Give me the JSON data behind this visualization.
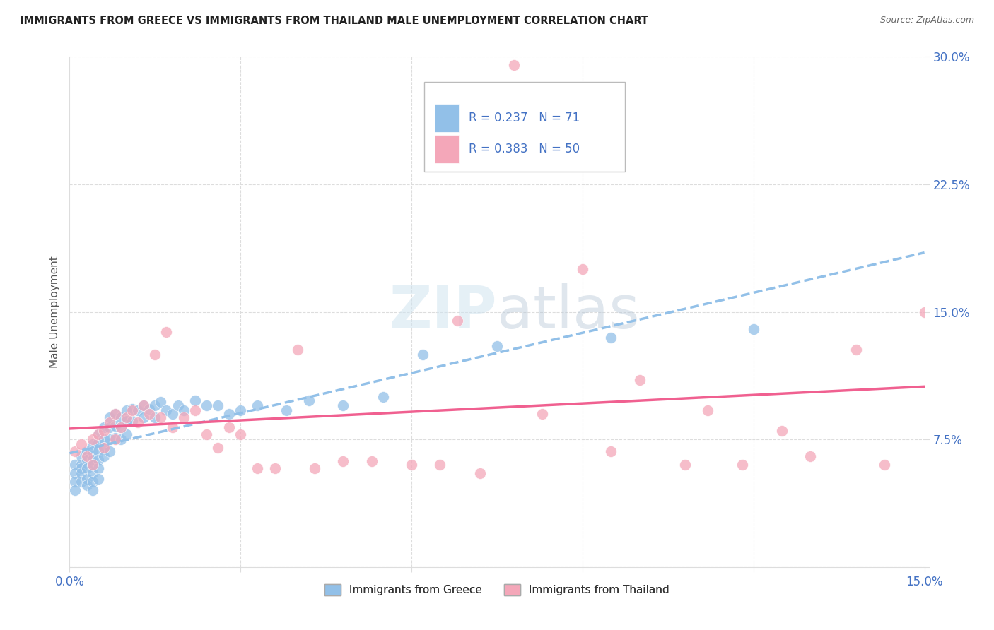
{
  "title": "IMMIGRANTS FROM GREECE VS IMMIGRANTS FROM THAILAND MALE UNEMPLOYMENT CORRELATION CHART",
  "source": "Source: ZipAtlas.com",
  "ylabel": "Male Unemployment",
  "xlim": [
    0.0,
    0.15
  ],
  "ylim": [
    0.0,
    0.3
  ],
  "greece_color": "#92c0e8",
  "thailand_color": "#f4a7b9",
  "greece_line_color": "#92c0e8",
  "thailand_line_color": "#f06090",
  "greece_R": 0.237,
  "greece_N": 71,
  "thailand_R": 0.383,
  "thailand_N": 50,
  "watermark_color": "#d0e4f0",
  "legend_color": "#4472c4",
  "grid_color": "#dddddd",
  "tick_color": "#4472c4",
  "greece_x": [
    0.001,
    0.001,
    0.001,
    0.001,
    0.002,
    0.002,
    0.002,
    0.002,
    0.002,
    0.003,
    0.003,
    0.003,
    0.003,
    0.003,
    0.004,
    0.004,
    0.004,
    0.004,
    0.004,
    0.004,
    0.004,
    0.005,
    0.005,
    0.005,
    0.005,
    0.005,
    0.005,
    0.006,
    0.006,
    0.006,
    0.006,
    0.007,
    0.007,
    0.007,
    0.007,
    0.008,
    0.008,
    0.008,
    0.009,
    0.009,
    0.009,
    0.01,
    0.01,
    0.01,
    0.011,
    0.011,
    0.012,
    0.013,
    0.013,
    0.014,
    0.015,
    0.015,
    0.016,
    0.017,
    0.018,
    0.019,
    0.02,
    0.022,
    0.024,
    0.026,
    0.028,
    0.03,
    0.033,
    0.038,
    0.042,
    0.048,
    0.055,
    0.062,
    0.075,
    0.095,
    0.12
  ],
  "greece_y": [
    0.06,
    0.055,
    0.05,
    0.045,
    0.065,
    0.06,
    0.058,
    0.055,
    0.05,
    0.068,
    0.063,
    0.058,
    0.052,
    0.048,
    0.072,
    0.068,
    0.063,
    0.06,
    0.055,
    0.05,
    0.045,
    0.078,
    0.073,
    0.068,
    0.063,
    0.058,
    0.052,
    0.082,
    0.075,
    0.07,
    0.065,
    0.088,
    0.082,
    0.075,
    0.068,
    0.09,
    0.083,
    0.076,
    0.088,
    0.082,
    0.075,
    0.092,
    0.086,
    0.078,
    0.093,
    0.086,
    0.092,
    0.095,
    0.088,
    0.093,
    0.095,
    0.088,
    0.097,
    0.092,
    0.09,
    0.095,
    0.092,
    0.098,
    0.095,
    0.095,
    0.09,
    0.092,
    0.095,
    0.092,
    0.098,
    0.095,
    0.1,
    0.125,
    0.13,
    0.135,
    0.14
  ],
  "thailand_x": [
    0.001,
    0.002,
    0.003,
    0.004,
    0.004,
    0.005,
    0.006,
    0.006,
    0.007,
    0.008,
    0.008,
    0.009,
    0.01,
    0.011,
    0.012,
    0.013,
    0.014,
    0.015,
    0.016,
    0.017,
    0.018,
    0.02,
    0.022,
    0.024,
    0.026,
    0.028,
    0.03,
    0.033,
    0.036,
    0.04,
    0.043,
    0.048,
    0.053,
    0.06,
    0.065,
    0.068,
    0.072,
    0.078,
    0.083,
    0.09,
    0.095,
    0.1,
    0.108,
    0.112,
    0.118,
    0.125,
    0.13,
    0.138,
    0.143,
    0.15
  ],
  "thailand_y": [
    0.068,
    0.072,
    0.065,
    0.06,
    0.075,
    0.078,
    0.07,
    0.08,
    0.085,
    0.075,
    0.09,
    0.082,
    0.088,
    0.092,
    0.085,
    0.095,
    0.09,
    0.125,
    0.088,
    0.138,
    0.082,
    0.088,
    0.092,
    0.078,
    0.07,
    0.082,
    0.078,
    0.058,
    0.058,
    0.128,
    0.058,
    0.062,
    0.062,
    0.06,
    0.06,
    0.145,
    0.055,
    0.295,
    0.09,
    0.175,
    0.068,
    0.11,
    0.06,
    0.092,
    0.06,
    0.08,
    0.065,
    0.128,
    0.06,
    0.15
  ]
}
